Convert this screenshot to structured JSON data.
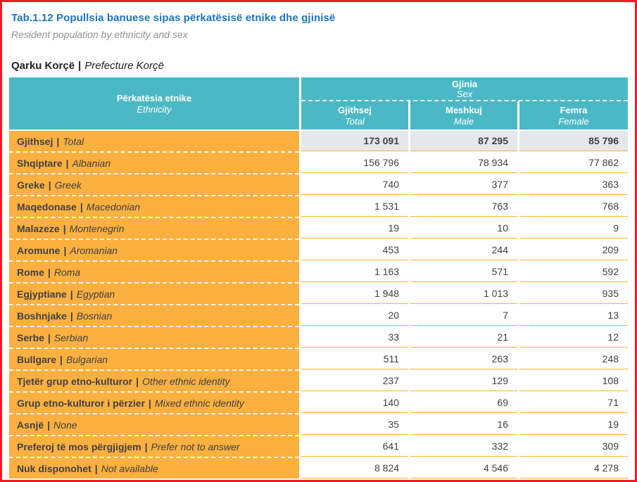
{
  "page": {
    "title": "Tab.1.12 Popullsia banuese sipas përkatësisë etnike dhe gjinisë",
    "subtitle": "Resident population by ethnicity and sex",
    "region_sq": "Qarku Korçë",
    "separator": "|",
    "region_en": "Prefecture Korçë"
  },
  "table": {
    "ethnicity_header_sq": "Përkatësia etnike",
    "ethnicity_header_en": "Ethnicity",
    "gender_header_sq": "Gjinia",
    "gender_header_en": "Sex",
    "columns": [
      {
        "sq": "Gjithsej",
        "en": "Total"
      },
      {
        "sq": "Meshkuj",
        "en": "Male"
      },
      {
        "sq": "Femra",
        "en": "Female"
      }
    ],
    "rows": [
      {
        "sq": "Gjithsej",
        "en": "Total",
        "total": "173 091",
        "male": "87 295",
        "female": "85 796",
        "is_total": true
      },
      {
        "sq": "Shqiptare",
        "en": "Albanian",
        "total": "156 796",
        "male": "78 934",
        "female": "77 862"
      },
      {
        "sq": "Greke",
        "en": "Greek",
        "total": "740",
        "male": "377",
        "female": "363"
      },
      {
        "sq": "Maqedonase",
        "en": "Macedonian",
        "total": "1 531",
        "male": "763",
        "female": "768"
      },
      {
        "sq": "Malazeze",
        "en": "Montenegrin",
        "total": "19",
        "male": "10",
        "female": "9"
      },
      {
        "sq": "Aromune",
        "en": "Aromanian",
        "total": "453",
        "male": "244",
        "female": "209"
      },
      {
        "sq": "Rome",
        "en": "Roma",
        "total": "1 163",
        "male": "571",
        "female": "592"
      },
      {
        "sq": "Egjyptiane",
        "en": "Egyptian",
        "total": "1 948",
        "male": "1 013",
        "female": "935"
      },
      {
        "sq": "Boshnjake",
        "en": "Bosnian",
        "total": "20",
        "male": "7",
        "female": "13"
      },
      {
        "sq": "Serbe",
        "en": "Serbian",
        "total": "33",
        "male": "21",
        "female": "12"
      },
      {
        "sq": "Bullgare",
        "en": "Bulgarian",
        "total": "511",
        "male": "263",
        "female": "248"
      },
      {
        "sq": "Tjetër grup etno-kulturor",
        "en": "Other ethnic identity",
        "total": "237",
        "male": "129",
        "female": "108"
      },
      {
        "sq": "Grup etno-kulturor i përzier",
        "en": "Mixed ethnic identity",
        "total": "140",
        "male": "69",
        "female": "71"
      },
      {
        "sq": "Asnjë",
        "en": "None",
        "total": "35",
        "male": "16",
        "female": "19"
      },
      {
        "sq": "Preferoj të mos përgjigjem",
        "en": "Prefer not to answer",
        "total": "641",
        "male": "332",
        "female": "309"
      },
      {
        "sq": "Nuk disponohet",
        "en": "Not available",
        "total": "8 824",
        "male": "4 546",
        "female": "4 278"
      }
    ]
  },
  "colors": {
    "frame_red": "#EC1C24",
    "header_teal": "#4BB9C5",
    "row_orange": "#FBB040",
    "title_blue": "#1B75BC",
    "subtitle_gray": "#8E9093",
    "text_dark": "#414042",
    "total_row_gray": "#E6E7E8"
  }
}
